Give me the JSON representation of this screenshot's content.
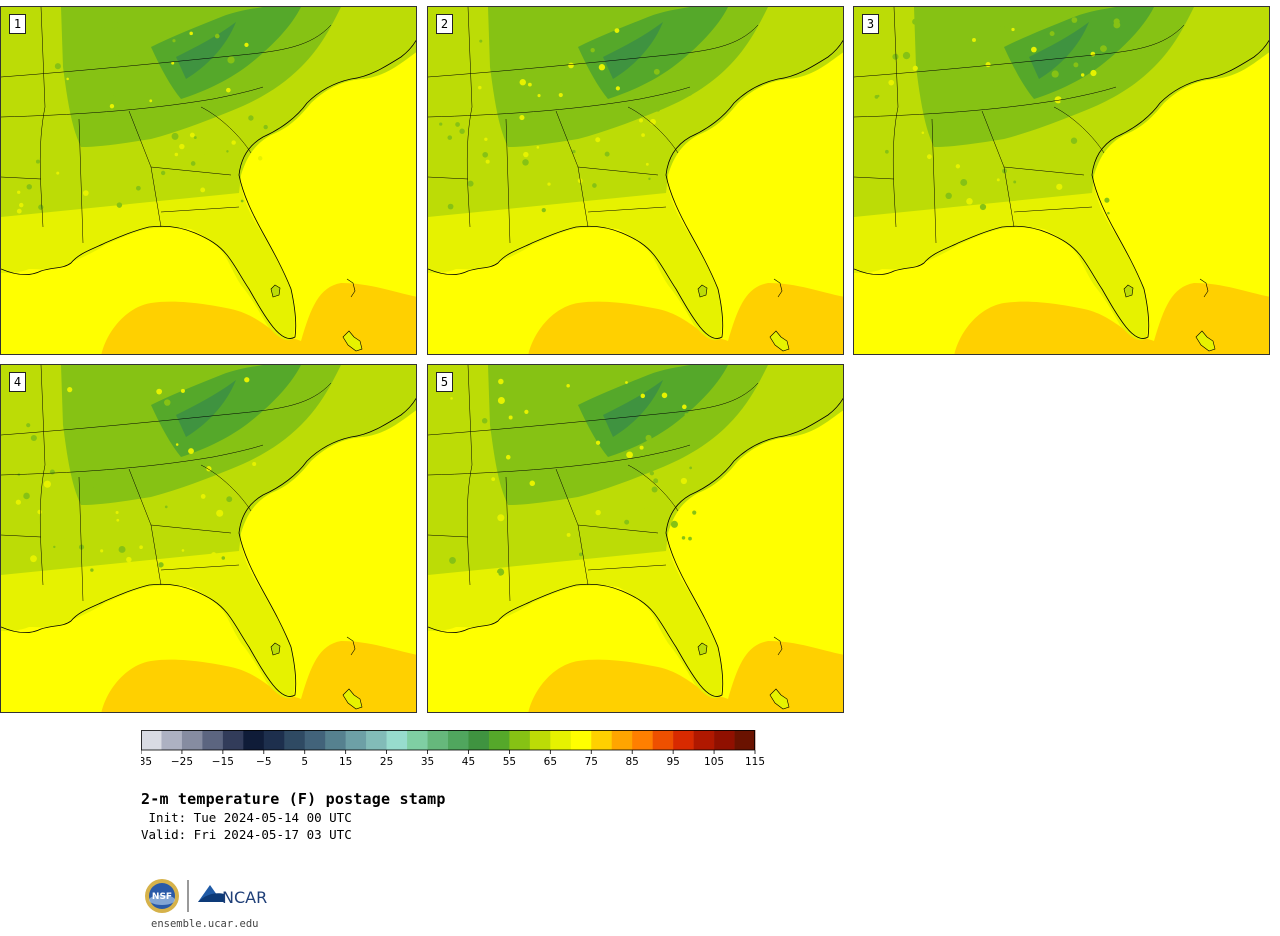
{
  "panels": [
    {
      "label": "1"
    },
    {
      "label": "2"
    },
    {
      "label": "3"
    },
    {
      "label": "4"
    },
    {
      "label": "5"
    }
  ],
  "colorbar": {
    "colors": [
      "#d9dbe3",
      "#adb1c2",
      "#868ca1",
      "#5c6580",
      "#323c5a",
      "#0f1c38",
      "#1d2f4d",
      "#2f4a63",
      "#42637a",
      "#56818f",
      "#6da0a6",
      "#82bcb8",
      "#97dccd",
      "#7fcfa3",
      "#66b87c",
      "#50a65e",
      "#3f9340",
      "#55a82a",
      "#86c214",
      "#bcdc06",
      "#e6f200",
      "#ffff00",
      "#ffd000",
      "#ffa500",
      "#ff7f00",
      "#ee5000",
      "#d82a00",
      "#b01800",
      "#901000",
      "#6a1200"
    ],
    "tick_labels": [
      "−35",
      "−25",
      "−15",
      "−5",
      "5",
      "15",
      "25",
      "35",
      "45",
      "55",
      "65",
      "75",
      "85",
      "95",
      "105",
      "115"
    ]
  },
  "title": "2-m temperature (F) postage stamp",
  "init_line": " Init: Tue 2024-05-14 00 UTC",
  "valid_line": "Valid: Fri 2024-05-17 03 UTC",
  "logos": {
    "nsf": "NSF",
    "ncar": "NCAR"
  },
  "website": "ensemble.ucar.edu",
  "map_colors": {
    "ocean_warm": "#ffff00",
    "ocean_hot": "#ffd000",
    "land_lowland": "#e6f200",
    "land_mid": "#bcdc06",
    "land_upland": "#86c214",
    "land_mountain": "#55a82a",
    "land_peak": "#3f9340",
    "coast_water": "#bcdc06"
  }
}
